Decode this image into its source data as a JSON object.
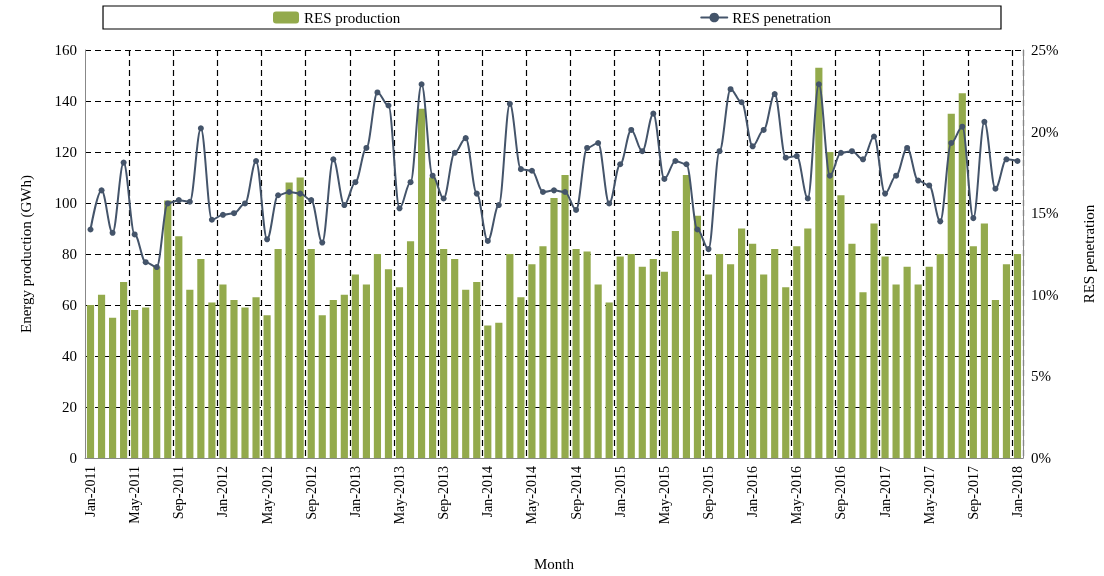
{
  "chart_data": {
    "type": "bar",
    "categories": [
      "Jan-2011",
      null,
      null,
      null,
      "May-2011",
      null,
      null,
      null,
      "Sep-2011",
      null,
      null,
      null,
      "Jan-2012",
      null,
      null,
      null,
      "May-2012",
      null,
      null,
      null,
      "Sep-2012",
      null,
      null,
      null,
      "Jan-2013",
      null,
      null,
      null,
      "May-2013",
      null,
      null,
      null,
      "Sep-2013",
      null,
      null,
      null,
      "Jan-2014",
      null,
      null,
      null,
      "May-2014",
      null,
      null,
      null,
      "Sep-2014",
      null,
      null,
      null,
      "Jan-2015",
      null,
      null,
      null,
      "May-2015",
      null,
      null,
      null,
      "Sep-2015",
      null,
      null,
      null,
      "Jan-2016",
      null,
      null,
      null,
      "May-2016",
      null,
      null,
      null,
      "Sep-2016",
      null,
      null,
      null,
      "Jan-2017",
      null,
      null,
      null,
      "May-2017",
      null,
      null,
      null,
      "Sep-2017",
      null,
      null,
      null,
      "Jan-2018"
    ],
    "series": [
      {
        "name": "RES production",
        "color": "#93aa4c",
        "values": [
          60,
          64,
          55,
          69,
          58,
          59,
          75,
          101,
          87,
          66,
          78,
          61,
          68,
          62,
          59,
          63,
          56,
          82,
          108,
          110,
          82,
          56,
          62,
          64,
          72,
          68,
          80,
          74,
          67,
          85,
          137,
          110,
          82,
          78,
          66,
          69,
          52,
          53,
          80,
          63,
          76,
          83,
          102,
          111,
          82,
          81,
          68,
          61,
          79,
          80,
          75,
          78,
          73,
          89,
          111,
          95,
          72,
          80,
          76,
          90,
          84,
          72,
          82,
          67,
          83,
          90,
          153,
          120,
          103,
          84,
          65,
          92,
          79,
          68,
          75,
          68,
          75,
          80,
          135,
          143,
          83,
          92,
          62,
          76,
          80
        ]
      },
      {
        "name": "RES penetration",
        "type": "line",
        "axis": "y2",
        "color": "#44546a",
        "marker": "circle",
        "values": [
          14.0,
          16.4,
          13.8,
          18.1,
          13.7,
          12.0,
          11.7,
          15.6,
          15.8,
          15.7,
          20.2,
          14.6,
          14.9,
          15.0,
          15.6,
          18.2,
          13.4,
          16.1,
          16.3,
          16.2,
          15.8,
          13.2,
          18.3,
          15.5,
          16.9,
          19.0,
          22.4,
          21.6,
          15.3,
          16.9,
          22.9,
          17.3,
          15.9,
          18.7,
          19.6,
          16.2,
          13.3,
          15.5,
          21.7,
          17.7,
          17.6,
          16.3,
          16.4,
          16.3,
          15.2,
          19.0,
          19.3,
          15.6,
          18.0,
          20.1,
          18.8,
          21.1,
          17.1,
          18.2,
          18.0,
          14.0,
          12.8,
          18.8,
          22.6,
          21.8,
          19.1,
          20.1,
          22.3,
          18.4,
          18.5,
          15.9,
          22.9,
          17.3,
          18.7,
          18.8,
          18.3,
          19.7,
          16.2,
          17.3,
          19.0,
          17.0,
          16.7,
          14.5,
          19.3,
          20.3,
          14.7,
          20.6,
          16.5,
          18.3,
          18.2
        ]
      }
    ],
    "xlabel": "Month",
    "ylabel": "Energy production (GWh)",
    "y2label": "RES penetration",
    "ylim": [
      0,
      160
    ],
    "yticks": [
      0,
      20,
      40,
      60,
      80,
      100,
      120,
      140,
      160
    ],
    "y2lim": [
      0,
      25
    ],
    "y2ticks": [
      {
        "value": 0,
        "label": "0%"
      },
      {
        "value": 5,
        "label": "5%"
      },
      {
        "value": 10,
        "label": "10%"
      },
      {
        "value": 15,
        "label": "15%"
      },
      {
        "value": 20,
        "label": "20%"
      },
      {
        "value": 25,
        "label": "25%"
      }
    ],
    "grid": true,
    "legend": "top"
  }
}
